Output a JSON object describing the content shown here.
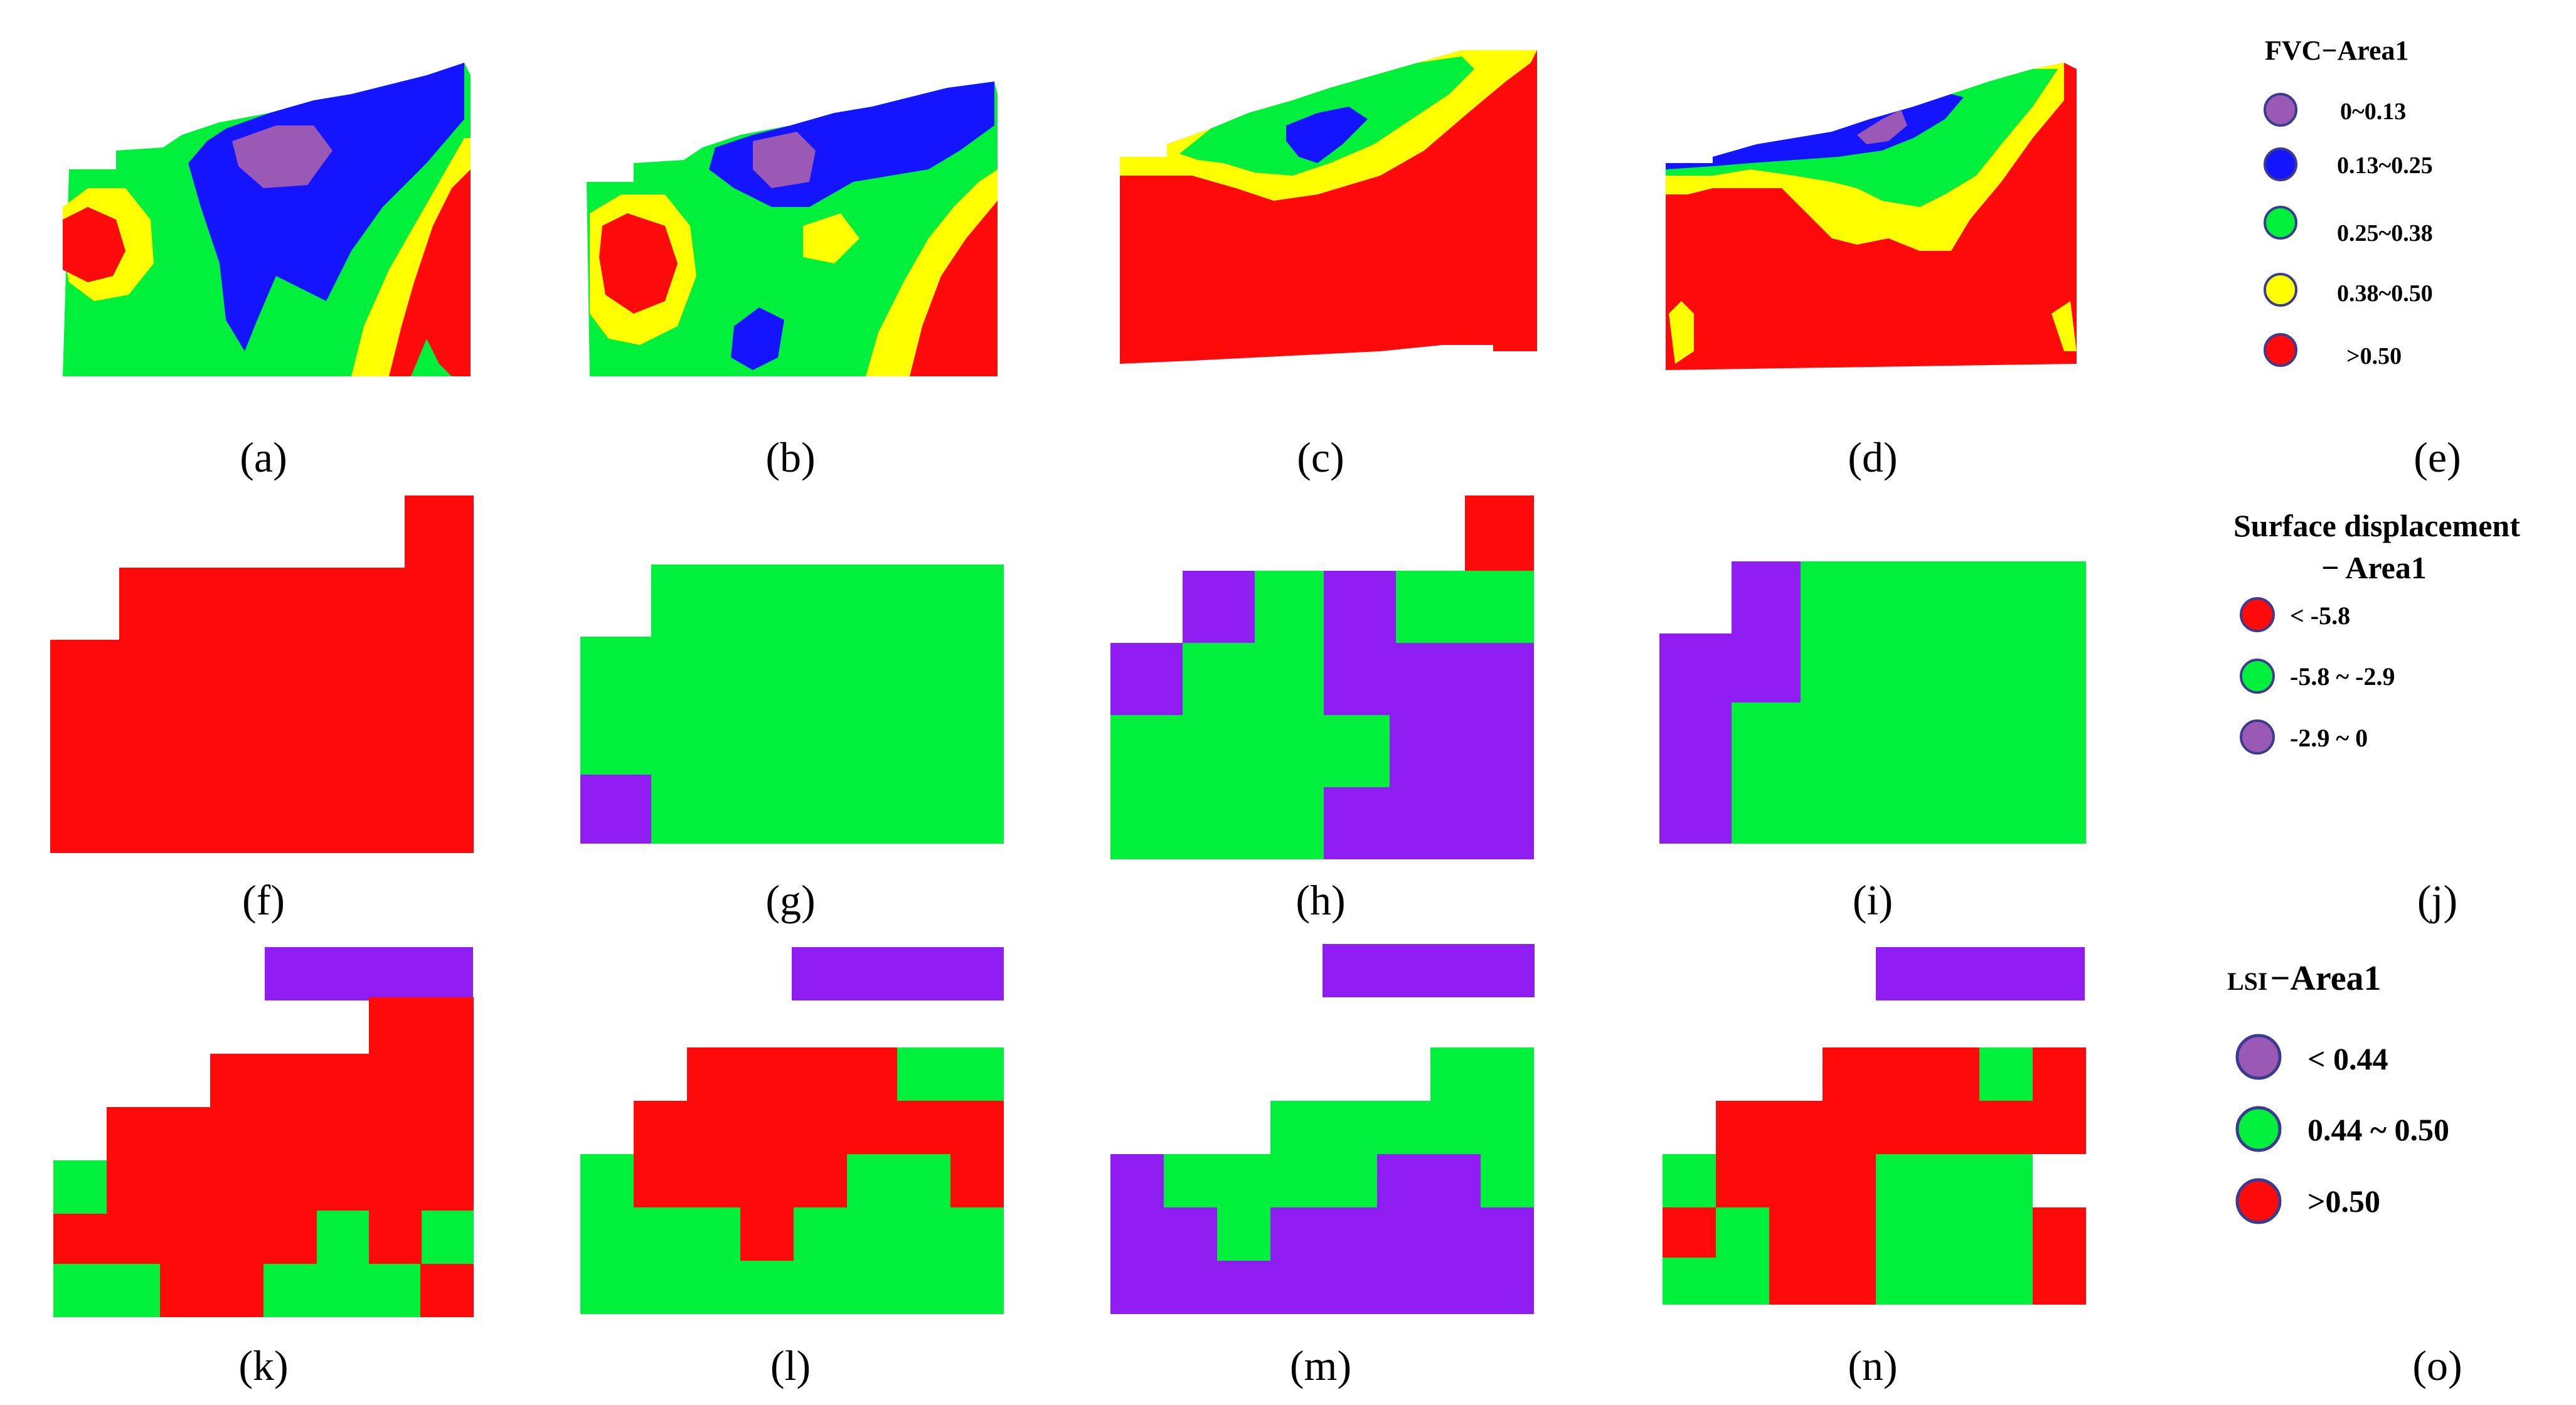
{
  "colors": {
    "purple": "#9b59b6",
    "violet": "#8f1cf0",
    "blue": "#1414ff",
    "green": "#00f03c",
    "yellow": "#ffff00",
    "red": "#ff0a0a",
    "text": "#000000"
  },
  "panel_labels": {
    "a": "(a)",
    "b": "(b)",
    "c": "(c)",
    "d": "(d)",
    "e": "(e)",
    "f": "(f)",
    "g": "(g)",
    "h": "(h)",
    "i": "(i)",
    "j": "(j)",
    "k": "(k)",
    "l": "(l)",
    "m": "(m)",
    "n": "(n)",
    "o": "(o)"
  },
  "legends": {
    "fvc": {
      "title": "FVC−Area1",
      "items": [
        {
          "label": "0~0.13",
          "color": "purple"
        },
        {
          "label": "0.13~0.25",
          "color": "blue"
        },
        {
          "label": "0.25~0.38",
          "color": "green"
        },
        {
          "label": "0.38~0.50",
          "color": "yellow"
        },
        {
          "label": ">0.50",
          "color": "red"
        }
      ]
    },
    "displacement": {
      "title_line1": "Surface displacement",
      "title_line2": "− Area1",
      "items": [
        {
          "label": "< -5.8",
          "color": "red"
        },
        {
          "label": "-5.8 ~ -2.9",
          "color": "green"
        },
        {
          "label": "-2.9 ~ 0",
          "color": "purple"
        }
      ]
    },
    "lsi": {
      "title_prefix": "LSI",
      "title_suffix": "−Area1",
      "items": [
        {
          "label": "< 0.44",
          "color": "purple"
        },
        {
          "label": "0.44 ~ 0.50",
          "color": "green"
        },
        {
          "label": ">0.50",
          "color": "red"
        }
      ]
    }
  }
}
